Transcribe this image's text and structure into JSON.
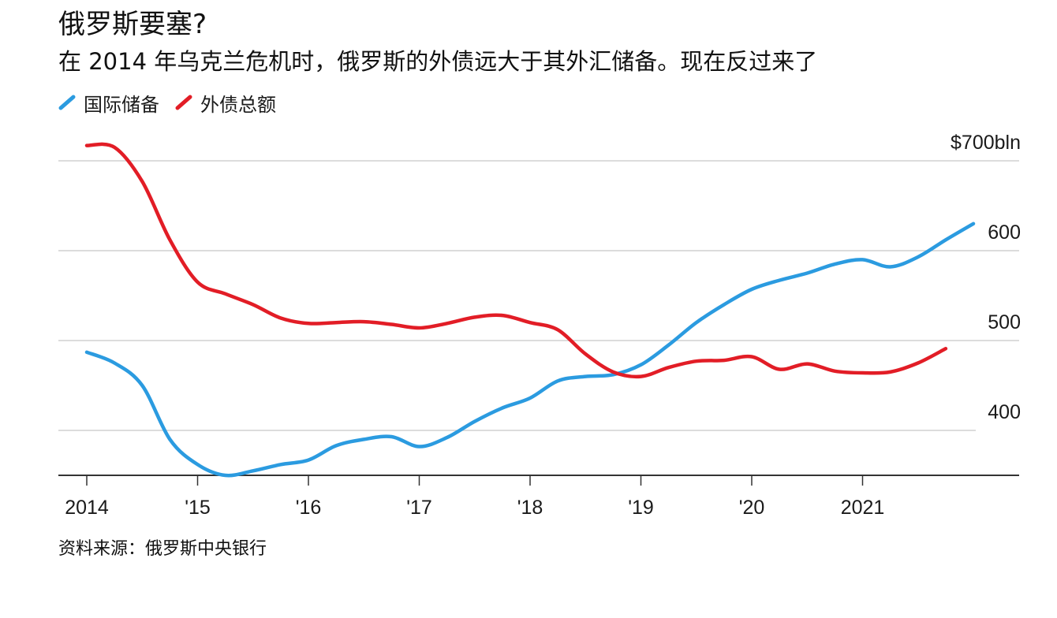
{
  "title": "俄罗斯要塞?",
  "subtitle": "在 2014 年乌克兰危机时，俄罗斯的外债远大于其外汇储备。现在反过来了",
  "source": "资料来源：俄罗斯中央银行",
  "chart_data": {
    "type": "line",
    "title": "俄罗斯要塞?",
    "subtitle": "在 2014 年乌克兰危机时，俄罗斯的外债远大于其外汇储备。现在反过来了",
    "x_ticks": [
      "2014",
      "'15",
      "'16",
      "'17",
      "'18",
      "'19",
      "'20",
      "2021"
    ],
    "y_ticks": [
      {
        "value": 700,
        "label": "$700bln"
      },
      {
        "value": 600,
        "label": "600"
      },
      {
        "value": 500,
        "label": "500"
      },
      {
        "value": 400,
        "label": "400"
      }
    ],
    "ylim": [
      350,
      720
    ],
    "xlim": [
      2014.0,
      2022.3
    ],
    "grid": "horizontal",
    "legend_position": "top-left",
    "series": [
      {
        "name": "国际储备",
        "color": "#2b9be0",
        "points": [
          [
            2014.0,
            487
          ],
          [
            2014.25,
            475
          ],
          [
            2014.5,
            450
          ],
          [
            2014.75,
            390
          ],
          [
            2015.0,
            362
          ],
          [
            2015.25,
            350
          ],
          [
            2015.5,
            355
          ],
          [
            2015.75,
            362
          ],
          [
            2016.0,
            367
          ],
          [
            2016.25,
            383
          ],
          [
            2016.5,
            390
          ],
          [
            2016.75,
            393
          ],
          [
            2017.0,
            382
          ],
          [
            2017.25,
            392
          ],
          [
            2017.5,
            410
          ],
          [
            2017.75,
            425
          ],
          [
            2018.0,
            436
          ],
          [
            2018.25,
            455
          ],
          [
            2018.5,
            460
          ],
          [
            2018.75,
            462
          ],
          [
            2019.0,
            473
          ],
          [
            2019.25,
            495
          ],
          [
            2019.5,
            520
          ],
          [
            2019.75,
            540
          ],
          [
            2020.0,
            557
          ],
          [
            2020.25,
            567
          ],
          [
            2020.5,
            575
          ],
          [
            2020.75,
            585
          ],
          [
            2021.0,
            590
          ],
          [
            2021.25,
            582
          ],
          [
            2021.5,
            593
          ],
          [
            2021.75,
            612
          ],
          [
            2022.0,
            630
          ]
        ]
      },
      {
        "name": "外债总额",
        "color": "#e21d26",
        "points": [
          [
            2014.0,
            717
          ],
          [
            2014.25,
            715
          ],
          [
            2014.5,
            677
          ],
          [
            2014.75,
            612
          ],
          [
            2015.0,
            565
          ],
          [
            2015.25,
            552
          ],
          [
            2015.5,
            540
          ],
          [
            2015.75,
            525
          ],
          [
            2016.0,
            519
          ],
          [
            2016.25,
            520
          ],
          [
            2016.5,
            521
          ],
          [
            2016.75,
            518
          ],
          [
            2017.0,
            514
          ],
          [
            2017.25,
            519
          ],
          [
            2017.5,
            526
          ],
          [
            2017.75,
            528
          ],
          [
            2018.0,
            520
          ],
          [
            2018.25,
            512
          ],
          [
            2018.5,
            485
          ],
          [
            2018.75,
            465
          ],
          [
            2019.0,
            460
          ],
          [
            2019.25,
            470
          ],
          [
            2019.5,
            477
          ],
          [
            2019.75,
            478
          ],
          [
            2020.0,
            482
          ],
          [
            2020.25,
            468
          ],
          [
            2020.5,
            474
          ],
          [
            2020.75,
            466
          ],
          [
            2021.0,
            464
          ],
          [
            2021.25,
            465
          ],
          [
            2021.5,
            475
          ],
          [
            2021.75,
            491
          ]
        ]
      }
    ]
  }
}
